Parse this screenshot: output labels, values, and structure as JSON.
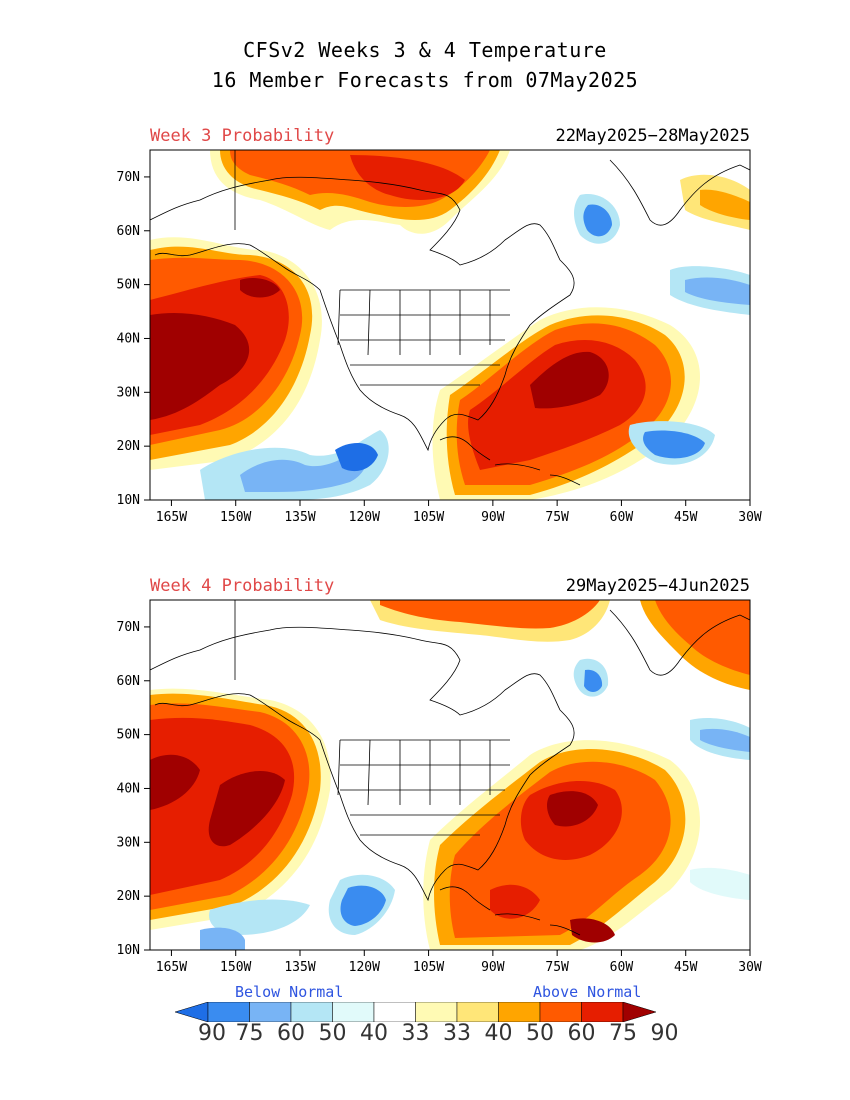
{
  "title_line1": "CFSv2 Weeks 3 & 4 Temperature",
  "title_line2": "16 Member Forecasts from 07May2025",
  "panels": [
    {
      "label": "Week 3 Probability",
      "dates": "22May2025−28May2025"
    },
    {
      "label": "Week 4 Probability",
      "dates": "29May2025−4Jun2025"
    }
  ],
  "lat_ticks": [
    "70N",
    "60N",
    "50N",
    "40N",
    "30N",
    "20N",
    "10N"
  ],
  "lon_ticks": [
    "165W",
    "150W",
    "135W",
    "120W",
    "105W",
    "90W",
    "75W",
    "60W",
    "45W",
    "30W"
  ],
  "legend": {
    "below_label": "Below Normal",
    "above_label": "Above Normal",
    "values": [
      "90",
      "75",
      "60",
      "50",
      "40",
      "33",
      "33",
      "40",
      "50",
      "60",
      "75",
      "90"
    ],
    "below_colors": [
      "#1e6ee6",
      "#3a8cf0",
      "#78b4f5",
      "#b4e6f5",
      "#e1fafa"
    ],
    "above_colors": [
      "#fffab4",
      "#ffe678",
      "#ffa500",
      "#ff5a00",
      "#e61e00",
      "#a00000"
    ]
  },
  "colors": {
    "title_red": "#e04848",
    "below_blue": "#2f55e0"
  }
}
